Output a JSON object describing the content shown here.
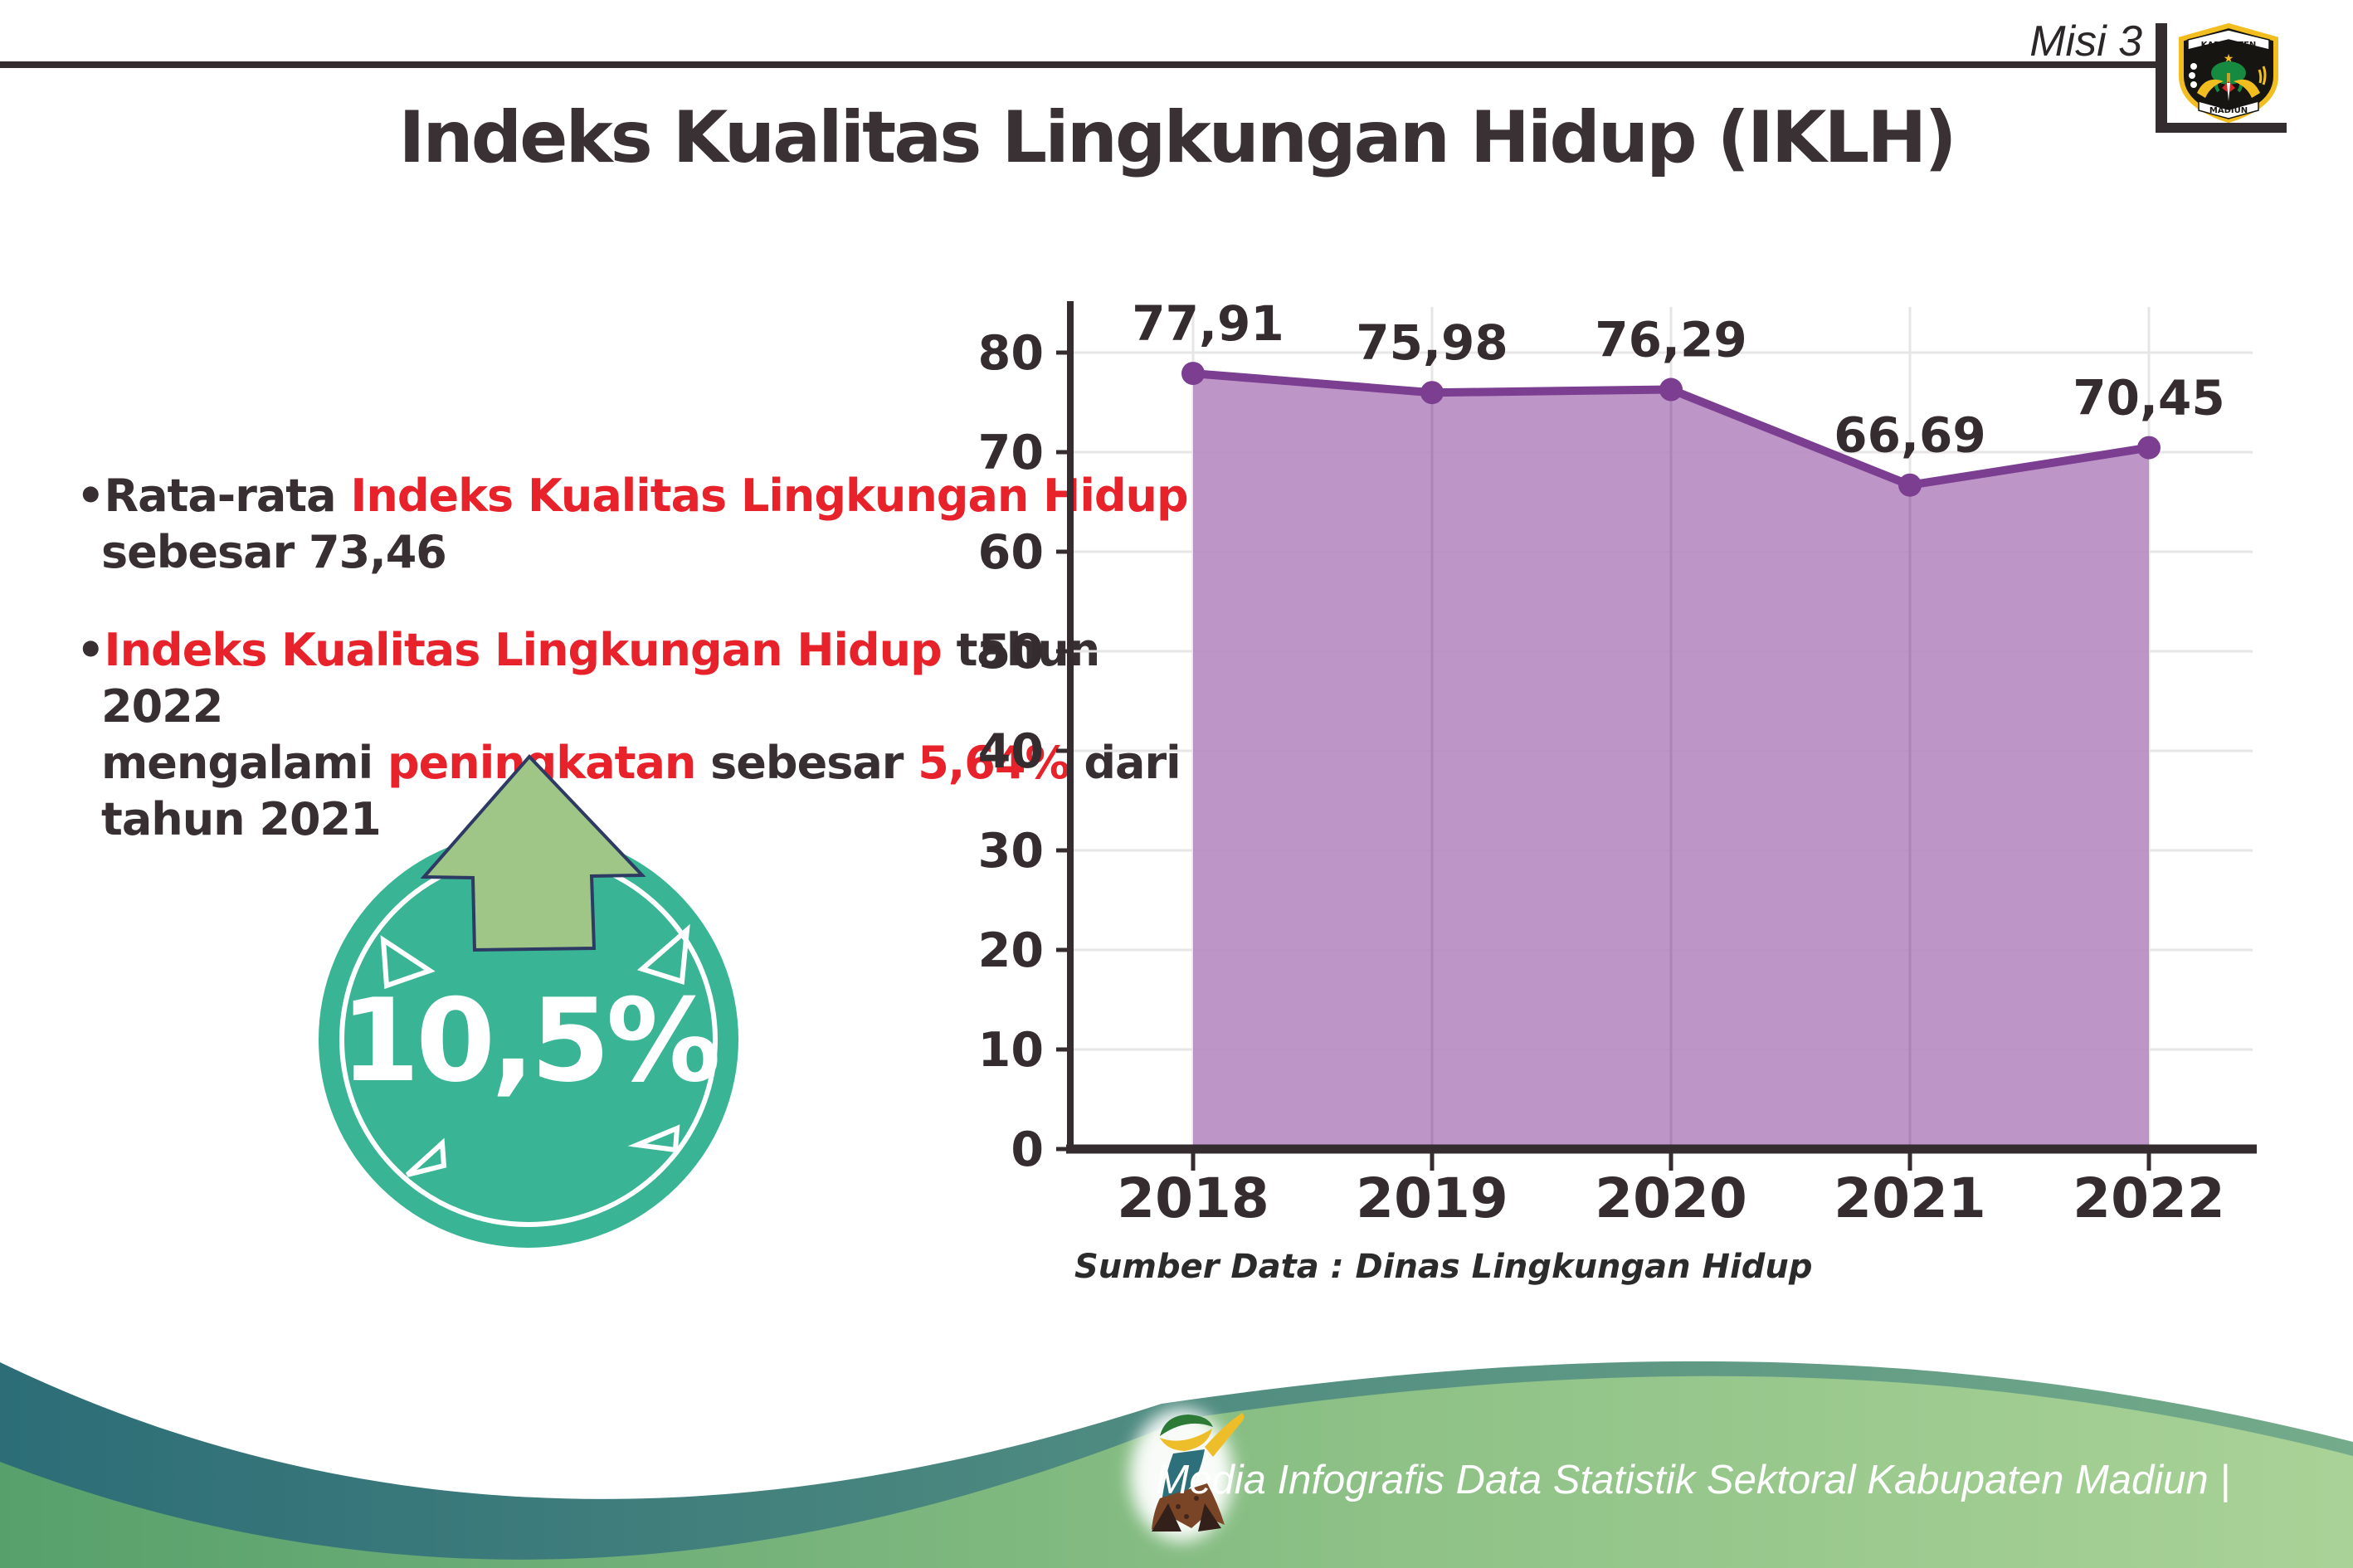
{
  "header": {
    "misi_label": "Misi 3",
    "title": "Indeks Kualitas Lingkungan Hidup (IKLH)"
  },
  "logo": {
    "top_text": "KABUPATEN",
    "bottom_text": "MADIUN"
  },
  "bullets": {
    "marker": "•",
    "b1": {
      "seg1_dark": "Rata-rata ",
      "seg2_red": "Indeks Kualitas Lingkungan Hidup",
      "line2_dark": "sebesar 73,46"
    },
    "b2": {
      "seg1_red": "Indeks Kualitas Lingkungan Hidup",
      "seg2_dark": " tahun 2022",
      "line2_seg1_dark": "mengalami ",
      "line2_seg2_red": "peningkatan",
      "line2_seg3_dark": " sebesar ",
      "line2_seg4_red": "5,64%",
      "line2_seg5_dark": " dari",
      "line3_dark": "tahun 2021"
    }
  },
  "badge": {
    "value": "10,5%"
  },
  "chart_data": {
    "type": "area",
    "title": "",
    "x": [
      "2018",
      "2019",
      "2020",
      "2021",
      "2022"
    ],
    "series": [
      {
        "name": "IKLH",
        "values": [
          77.91,
          75.98,
          76.29,
          66.69,
          70.45
        ]
      }
    ],
    "value_labels": [
      "77,91",
      "75,98",
      "76,29",
      "66,69",
      "70,45"
    ],
    "ylim": [
      0,
      80
    ],
    "ytick_step": 10,
    "grid": true,
    "legend_position": "none",
    "source_note": "Sumber Data : Dinas Lingkungan Hidup"
  },
  "footer": {
    "credit": "Media Infografis Data Statistik Sektoral Kabupaten Madiun |"
  },
  "colors": {
    "accent_red": "#e8222b",
    "text_dark": "#372f31",
    "line_purple": "#7c3e91",
    "fill_purple": "#b487bf",
    "axis_dark": "#342c2e",
    "grid_gray": "#e7e5e6",
    "badge_teal": "#39b495",
    "arrow_green": "#9fc687",
    "arrow_outline_navy": "#2d3a63",
    "wave_teal_left": "#2c6d77",
    "wave_teal_right": "#74ab8a",
    "wave_green_left": "#57a06c",
    "wave_green_right": "#a9d297"
  }
}
